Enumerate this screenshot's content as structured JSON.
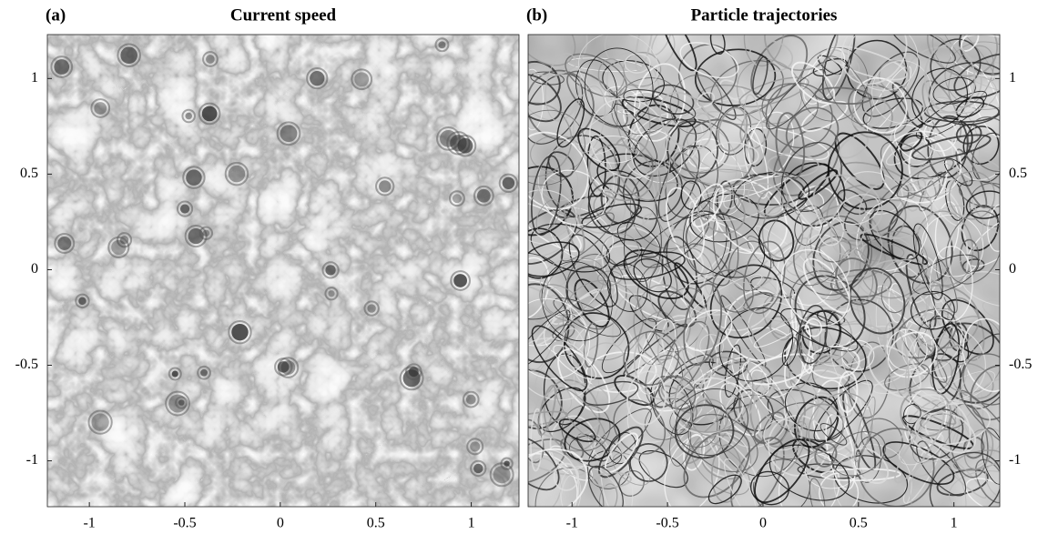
{
  "chart_data": [
    {
      "type": "image",
      "panel_label": "(a)",
      "title": "Current speed",
      "xlim": [
        -1.22,
        1.25
      ],
      "ylim": [
        -1.24,
        1.23
      ],
      "xticks": [
        -1,
        -0.5,
        0,
        0.5,
        1
      ],
      "yticks": [
        -1,
        -0.5,
        0,
        0.5,
        1
      ],
      "yaxis_position": "left"
    },
    {
      "type": "image",
      "panel_label": "(b)",
      "title": "Particle trajectories",
      "xlim": [
        -1.23,
        1.24
      ],
      "ylim": [
        -1.24,
        1.23
      ],
      "xticks": [
        -1,
        -0.5,
        0,
        0.5,
        1
      ],
      "yticks": [
        -1,
        -0.5,
        0,
        0.5,
        1
      ],
      "yaxis_position": "right"
    }
  ]
}
